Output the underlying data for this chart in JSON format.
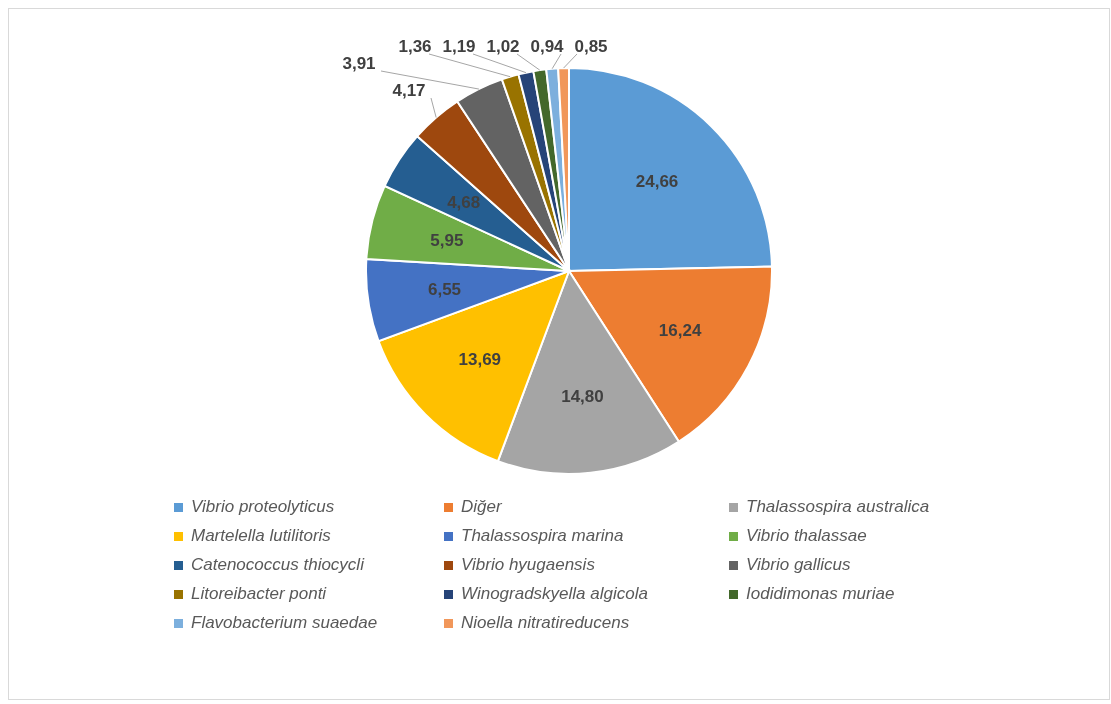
{
  "chart_data": {
    "type": "pie",
    "categories": [
      "Vibrio proteolyticus",
      "Diğer",
      "Thalassospira australica",
      "Martelella lutilitoris",
      "Thalassospira marina",
      "Vibrio thalassae",
      "Catenococcus thiocycli",
      "Vibrio hyugaensis",
      "Vibrio gallicus",
      "Litoreibacter ponti",
      "Winogradskyella algicola",
      "Iodidimonas muriae",
      "Flavobacterium suaedae",
      "Nioella nitratireducens"
    ],
    "values": [
      24.66,
      16.24,
      14.8,
      13.69,
      6.55,
      5.95,
      4.68,
      4.17,
      3.91,
      1.36,
      1.19,
      1.02,
      0.94,
      0.85
    ],
    "value_labels": [
      "24,66",
      "16,24",
      "14,80",
      "13,69",
      "6,55",
      "5,95",
      "4,68",
      "4,17",
      "3,91",
      "1,36",
      "1,19",
      "1,02",
      "0,94",
      "0,85"
    ],
    "colors": [
      "#5b9bd5",
      "#ed7d31",
      "#a5a5a5",
      "#ffc000",
      "#4472c4",
      "#70ad47",
      "#255e91",
      "#9e480e",
      "#636363",
      "#997300",
      "#264478",
      "#43682b",
      "#7cafdd",
      "#f1975a"
    ],
    "legend": "bottom"
  }
}
